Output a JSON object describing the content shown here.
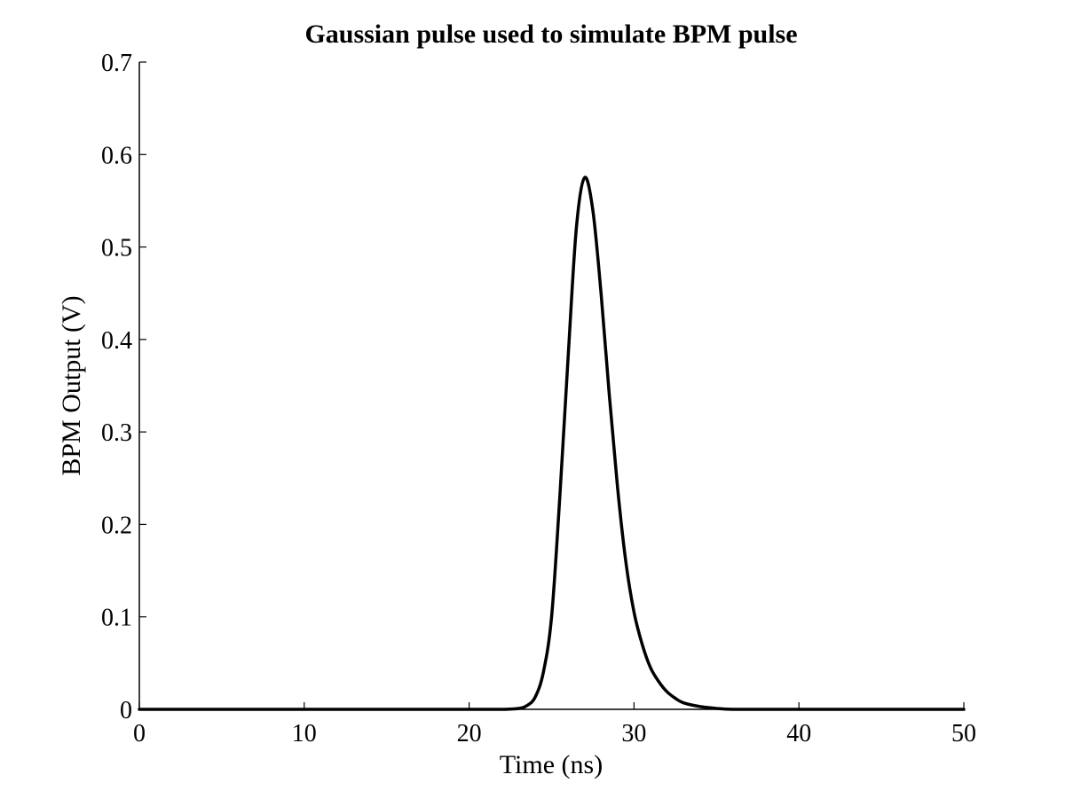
{
  "chart_data": {
    "type": "line",
    "title": "Gaussian pulse used to simulate BPM pulse",
    "xlabel": "Time (ns)",
    "ylabel": "BPM Output (V)",
    "xlim": [
      0,
      50
    ],
    "ylim": [
      0,
      0.7
    ],
    "xticks": [
      0,
      10,
      20,
      30,
      40,
      50
    ],
    "xtick_labels": [
      "0",
      "10",
      "20",
      "30",
      "40",
      "50"
    ],
    "yticks": [
      0,
      0.1,
      0.2,
      0.3,
      0.4,
      0.5,
      0.6,
      0.7
    ],
    "ytick_labels": [
      "0",
      "0.1",
      "0.2",
      "0.3",
      "0.4",
      "0.5",
      "0.6",
      "0.7"
    ],
    "grid": false,
    "line_color": "#000000",
    "series": [
      {
        "x": [
          0,
          5,
          10,
          15,
          20,
          22,
          23,
          23.5,
          24,
          24.5,
          25,
          25.5,
          26,
          26.5,
          27,
          27.5,
          28,
          28.5,
          29,
          29.5,
          30,
          30.5,
          31,
          31.5,
          32,
          32.5,
          33,
          34,
          35,
          36,
          38,
          40,
          45,
          50
        ],
        "y": [
          0,
          0,
          0,
          0,
          0,
          0,
          0.001,
          0.004,
          0.013,
          0.04,
          0.1,
          0.23,
          0.38,
          0.52,
          0.575,
          0.54,
          0.45,
          0.34,
          0.24,
          0.16,
          0.105,
          0.07,
          0.045,
          0.03,
          0.019,
          0.012,
          0.007,
          0.003,
          0.001,
          0,
          0,
          0,
          0,
          0
        ]
      }
    ]
  }
}
